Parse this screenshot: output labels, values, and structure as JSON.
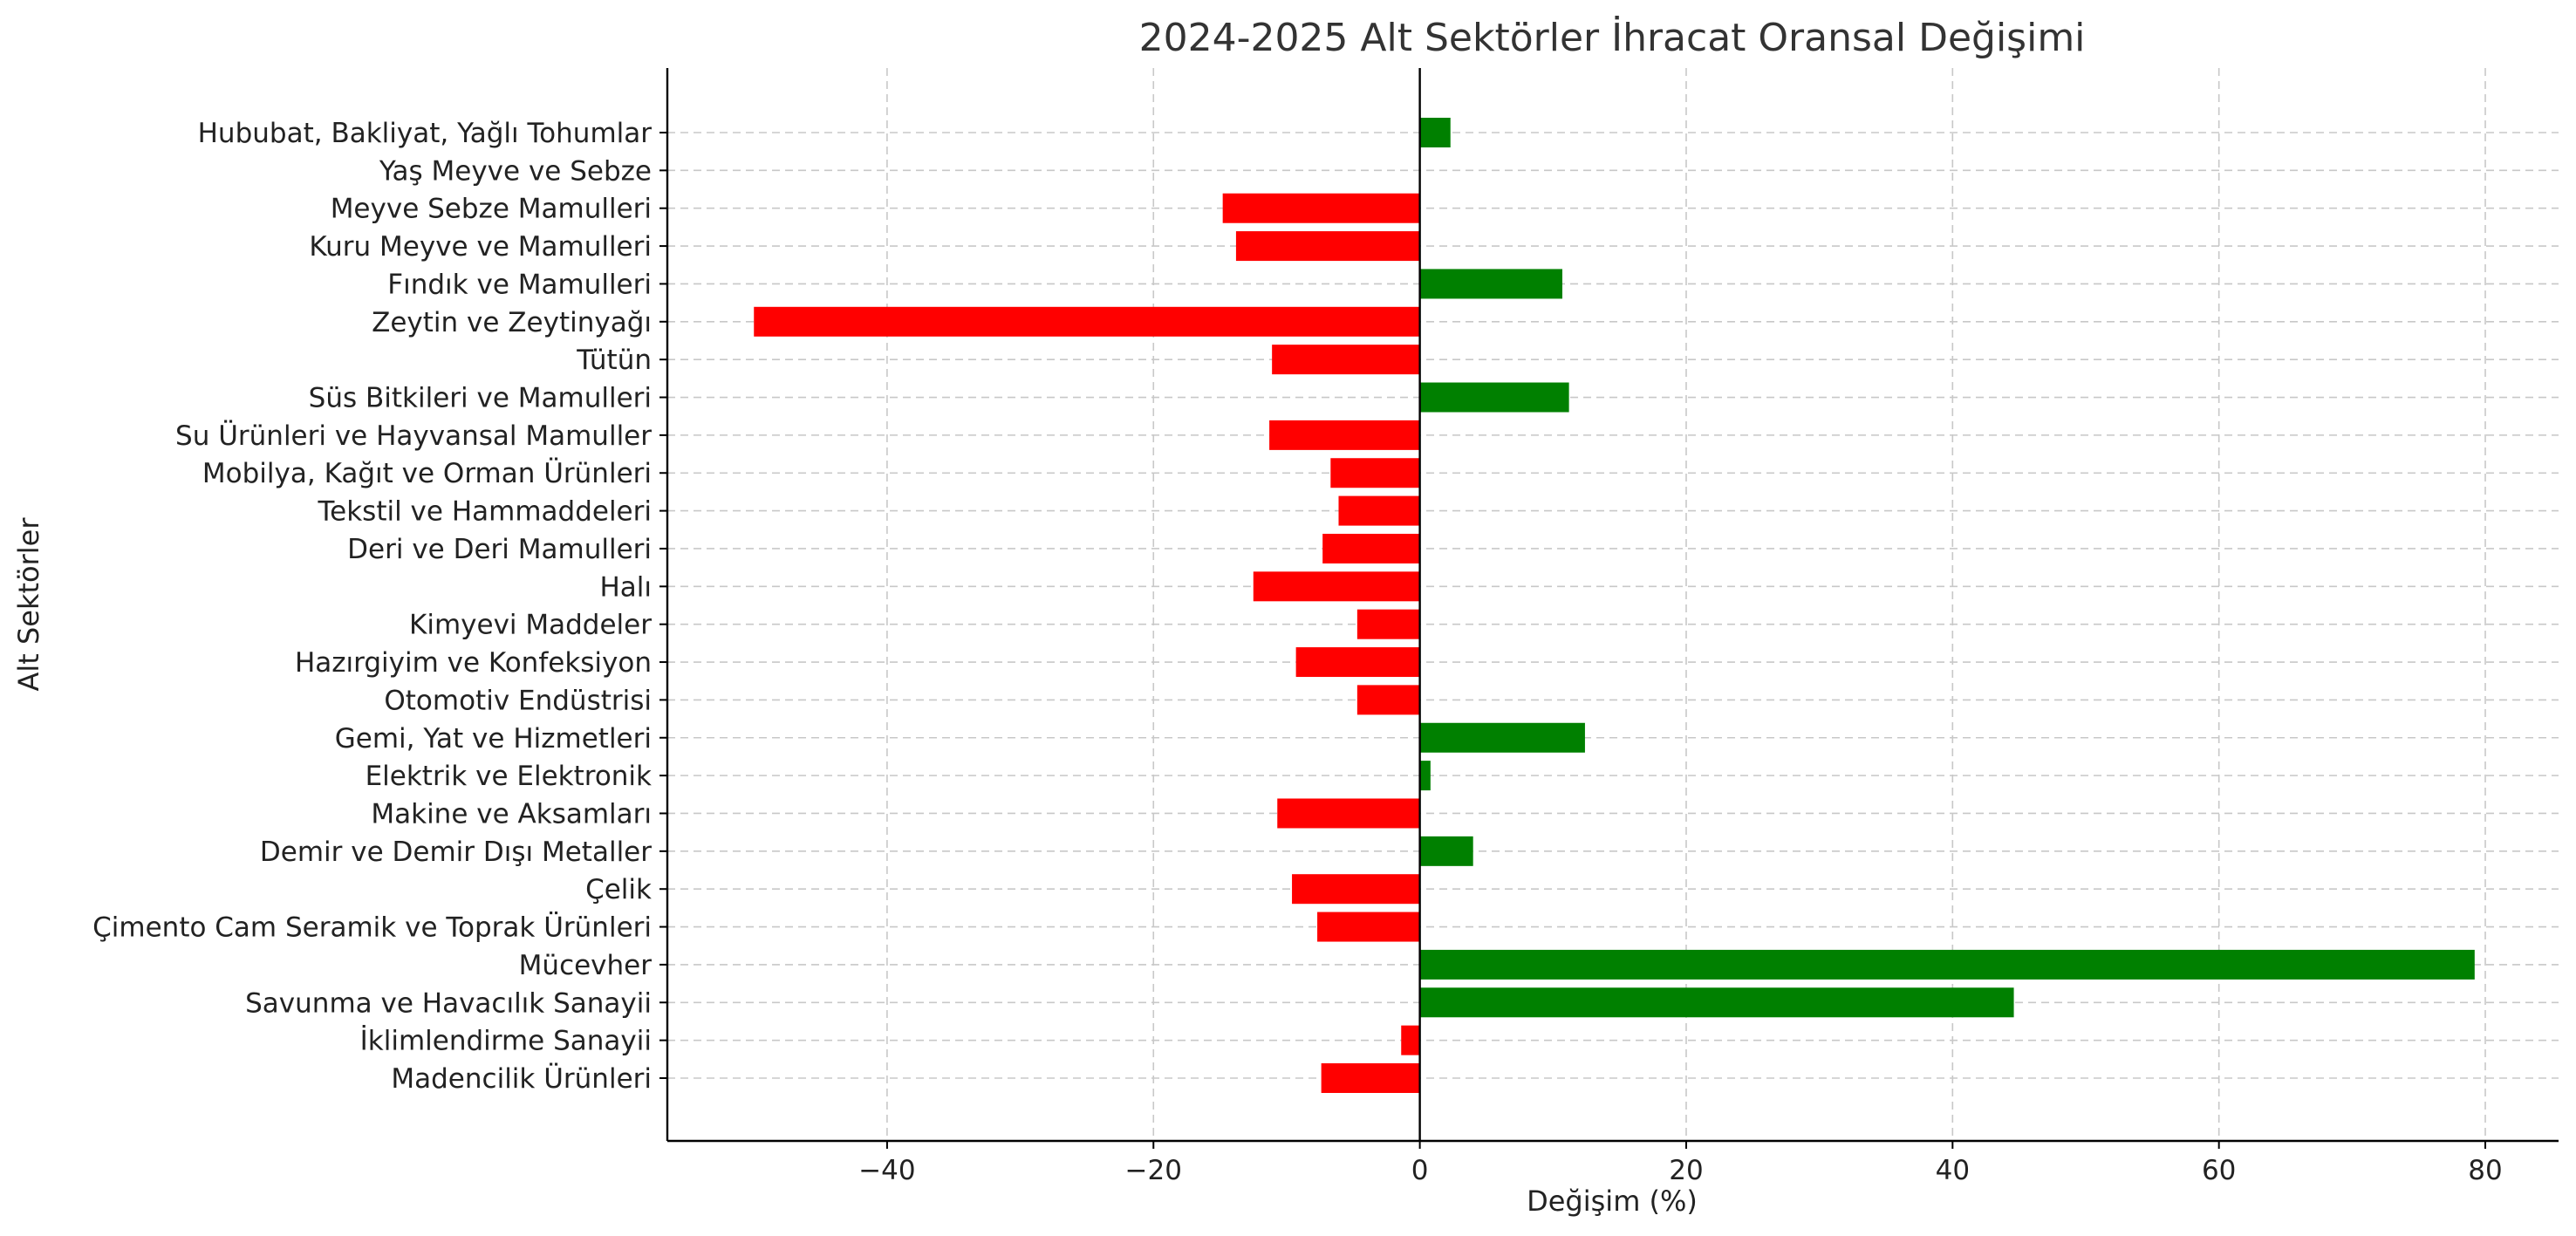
{
  "chart_data": {
    "type": "bar",
    "orientation": "horizontal",
    "title": "2024-2025 Alt Sektörler İhracat Oransal Değişimi",
    "xlabel": "Değişim (%)",
    "ylabel": "Alt Sektörler",
    "xlim": [
      -56.5,
      85.5
    ],
    "xticks": [
      -40,
      -20,
      0,
      20,
      40,
      60,
      80
    ],
    "xtick_labels": [
      "−40",
      "−20",
      "0",
      "20",
      "40",
      "60",
      "80"
    ],
    "grid": true,
    "colors": {
      "positive": "#008000",
      "negative": "#ff0000",
      "grid": "#c8c8c8",
      "title": "#333333"
    },
    "categories": [
      "Hububat, Bakliyat, Yağlı Tohumlar",
      "Yaş Meyve ve Sebze",
      "Meyve Sebze Mamulleri",
      "Kuru Meyve ve Mamulleri",
      "Fındık ve Mamulleri",
      "Zeytin ve Zeytinyağı",
      "Tütün",
      "Süs Bitkileri ve Mamulleri",
      "Su Ürünleri ve Hayvansal Mamuller",
      "Mobilya, Kağıt ve Orman Ürünleri",
      "Tekstil ve Hammaddeleri",
      "Deri ve Deri Mamulleri",
      "Halı",
      "Kimyevi Maddeler",
      "Hazırgiyim ve Konfeksiyon",
      "Otomotiv Endüstrisi",
      "Gemi, Yat ve Hizmetleri",
      "Elektrik ve Elektronik",
      "Makine ve Aksamları",
      "Demir ve Demir Dışı Metaller",
      "Çelik",
      "Çimento Cam Seramik ve Toprak Ürünleri",
      "Mücevher",
      "Savunma ve Havacılık Sanayii",
      "İklimlendirme Sanayii",
      "Madencilik Ürünleri"
    ],
    "values": [
      2.3,
      0.0,
      -14.8,
      -13.8,
      10.7,
      -50.0,
      -11.1,
      11.2,
      -11.3,
      -6.7,
      -6.1,
      -7.3,
      -12.5,
      -4.7,
      -9.3,
      -4.7,
      12.4,
      0.8,
      -10.7,
      4.0,
      -9.6,
      -7.7,
      79.2,
      44.6,
      -1.4,
      -7.4
    ]
  }
}
